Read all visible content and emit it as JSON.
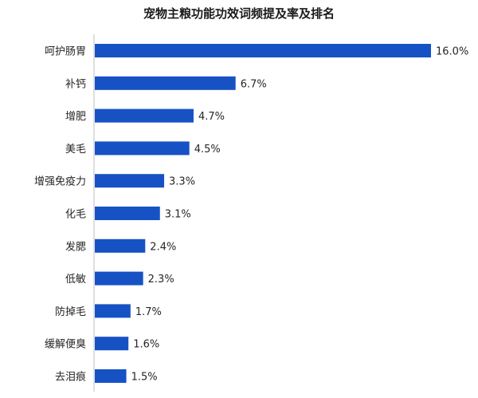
{
  "chart_data": {
    "type": "bar",
    "orientation": "horizontal",
    "title": "宠物主粮功能功效词频提及率及排名",
    "xlabel": "",
    "ylabel": "",
    "categories": [
      "呵护肠胃",
      "补钙",
      "增肥",
      "美毛",
      "增强免疫力",
      "化毛",
      "发腮",
      "低敏",
      "防掉毛",
      "缓解便臭",
      "去泪痕"
    ],
    "values": [
      16.0,
      6.7,
      4.7,
      4.5,
      3.3,
      3.1,
      2.4,
      2.3,
      1.7,
      1.6,
      1.5
    ],
    "value_labels": [
      "16.0%",
      "6.7%",
      "4.7%",
      "4.5%",
      "3.3%",
      "3.1%",
      "2.4%",
      "2.3%",
      "1.7%",
      "1.6%",
      "1.5%"
    ],
    "xlim": [
      0,
      16.0
    ],
    "grid": false,
    "legend": "none",
    "bar_color": "#1652c4"
  }
}
